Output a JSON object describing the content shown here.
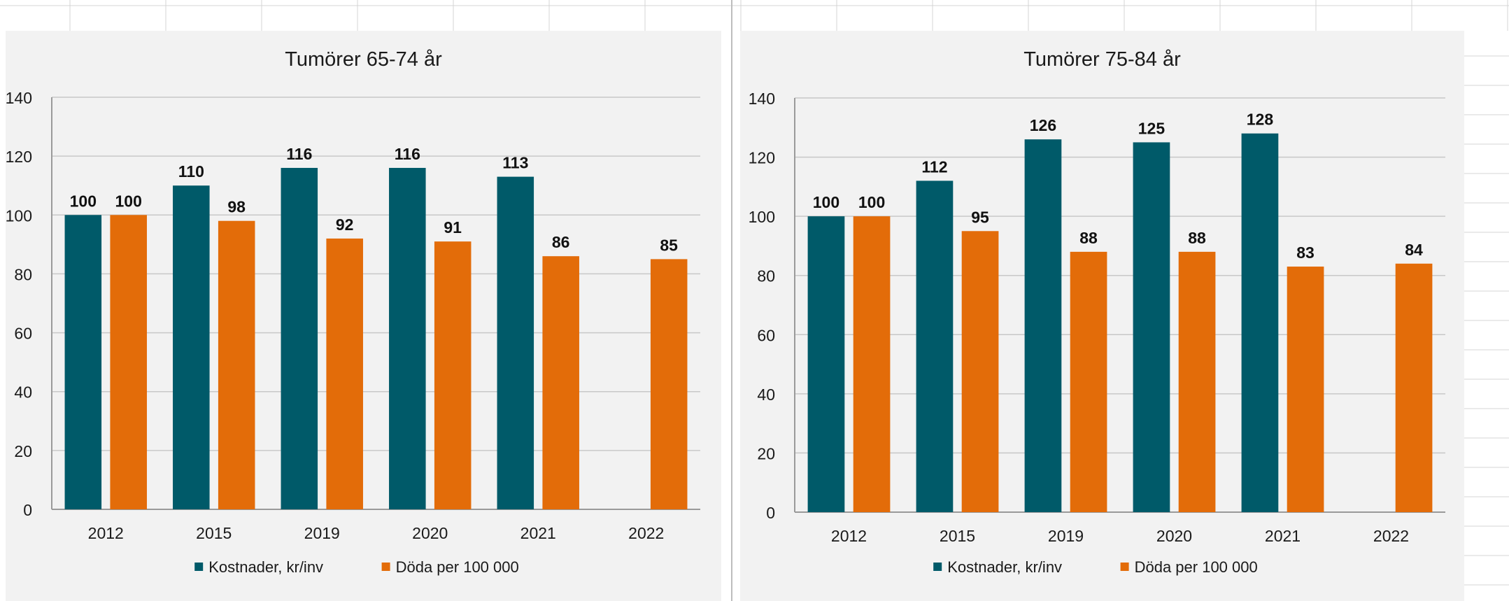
{
  "colors": {
    "cost": "#005a69",
    "deaths": "#e36c09",
    "gridline": "#c8c8c8",
    "sheet_grid": "#d4d4d4",
    "panel_bg": "#f2f2f2"
  },
  "chart_data": [
    {
      "type": "bar",
      "title": "Tumörer 65-74 år",
      "categories": [
        "2012",
        "2015",
        "2019",
        "2020",
        "2021",
        "2022"
      ],
      "series": [
        {
          "name": "Kostnader, kr/inv",
          "values": [
            100,
            110,
            116,
            116,
            113,
            null
          ]
        },
        {
          "name": "Döda per 100 000",
          "values": [
            100,
            98,
            92,
            91,
            86,
            85
          ]
        }
      ],
      "ylim": [
        0,
        140
      ],
      "yticks": [
        0,
        20,
        40,
        60,
        80,
        100,
        120,
        140
      ],
      "grid": true,
      "legend": "bottom"
    },
    {
      "type": "bar",
      "title": "Tumörer 75-84 år",
      "categories": [
        "2012",
        "2015",
        "2019",
        "2020",
        "2021",
        "2022"
      ],
      "series": [
        {
          "name": "Kostnader, kr/inv",
          "values": [
            100,
            112,
            126,
            125,
            128,
            null
          ]
        },
        {
          "name": "Döda per 100 000",
          "values": [
            100,
            95,
            88,
            88,
            83,
            84
          ]
        }
      ],
      "ylim": [
        0,
        140
      ],
      "yticks": [
        0,
        20,
        40,
        60,
        80,
        100,
        120,
        140
      ],
      "grid": true,
      "legend": "bottom"
    }
  ]
}
